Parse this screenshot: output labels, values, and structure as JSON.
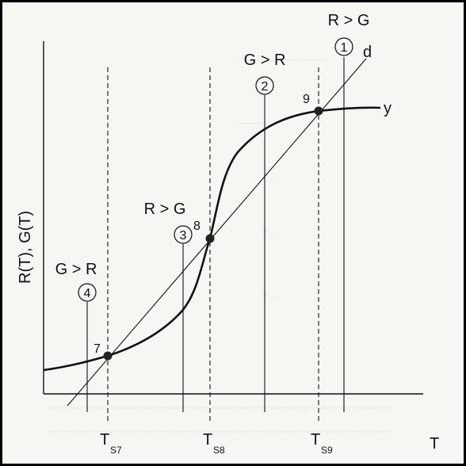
{
  "axes": {
    "y_label": "R(T), G(T)",
    "x_label": "T"
  },
  "curves": {
    "line_label": "d",
    "s_curve_label": "y"
  },
  "intersections": [
    {
      "number": "7",
      "tick_main": "T",
      "tick_sub": "S7"
    },
    {
      "number": "8",
      "tick_main": "T",
      "tick_sub": "S8"
    },
    {
      "number": "9",
      "tick_main": "T",
      "tick_sub": "S9"
    }
  ],
  "regions": [
    {
      "number": "1",
      "relation": "R > G"
    },
    {
      "number": "2",
      "relation": "G > R"
    },
    {
      "number": "3",
      "relation": "R > G"
    },
    {
      "number": "4",
      "relation": "G > R"
    }
  ],
  "colors": {
    "frame_border": "#000000",
    "ink": "#111111",
    "paper": "#f6f6f3"
  }
}
